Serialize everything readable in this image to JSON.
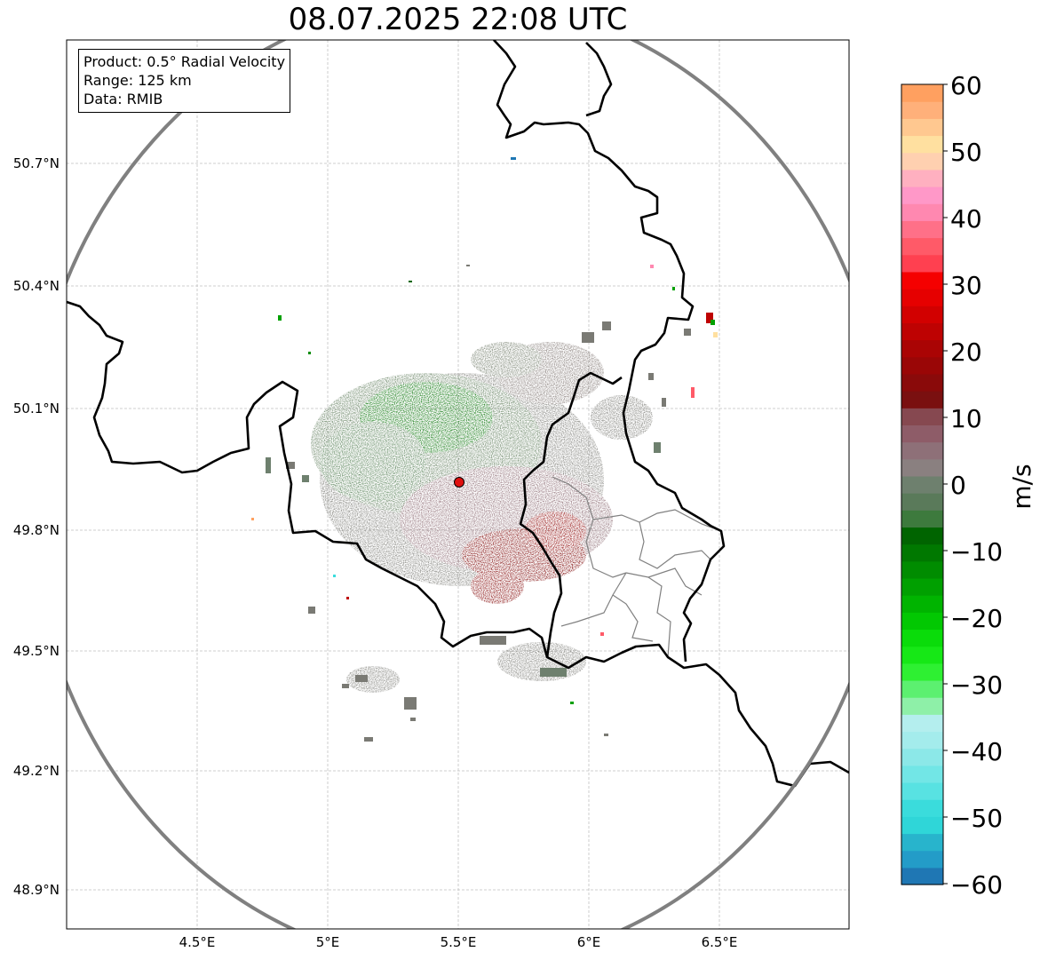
{
  "title": "08.07.2025 22:08 UTC",
  "info": {
    "product": "Product: 0.5° Radial Velocity",
    "range": "Range: 125 km",
    "source": "Data: RMIB"
  },
  "map": {
    "lon_ticks": [
      "4.5°E",
      "5°E",
      "5.5°E",
      "6°E",
      "6.5°E"
    ],
    "lat_ticks": [
      "50.7°N",
      "50.4°N",
      "50.1°N",
      "49.8°N",
      "49.5°N",
      "49.2°N",
      "48.9°N"
    ],
    "radar_site": {
      "lon": 5.505,
      "lat": 49.914
    },
    "range_ring_km": 125,
    "colors": {
      "border": "#000000",
      "range_ring": "#808080",
      "grid": "#c0c0c0",
      "radar_marker": "#e01010"
    }
  },
  "colorbar": {
    "label": "m/s",
    "ticks": [
      "60",
      "50",
      "40",
      "30",
      "20",
      "10",
      "0",
      "−10",
      "−20",
      "−30",
      "−40",
      "−50",
      "−60"
    ],
    "min": -60,
    "max": 60,
    "palette": [
      "#1f77b4",
      "#239cc8",
      "#28b4cc",
      "#2fd6d8",
      "#3adcdc",
      "#58e2e2",
      "#72e6e6",
      "#8ce8e8",
      "#a4ecec",
      "#b4eeee",
      "#8ef0a8",
      "#5cf070",
      "#2ef032",
      "#16e816",
      "#0adc0a",
      "#02c802",
      "#00b400",
      "#00a000",
      "#008c00",
      "#007800",
      "#006400",
      "#3d7a3d",
      "#5a7a5a",
      "#6e806e",
      "#8a8080",
      "#8e7078",
      "#8e5c68",
      "#864850",
      "#7a1010",
      "#8a0a0a",
      "#9a0606",
      "#aa0404",
      "#be0202",
      "#d20000",
      "#e60000",
      "#f50000",
      "#ff4050",
      "#ff5a68",
      "#ff7088",
      "#ff88b0",
      "#ff98c8",
      "#ffb0c0",
      "#ffd0b0",
      "#ffe0a0",
      "#ffc890",
      "#ffb07a",
      "#ffa060"
    ]
  }
}
